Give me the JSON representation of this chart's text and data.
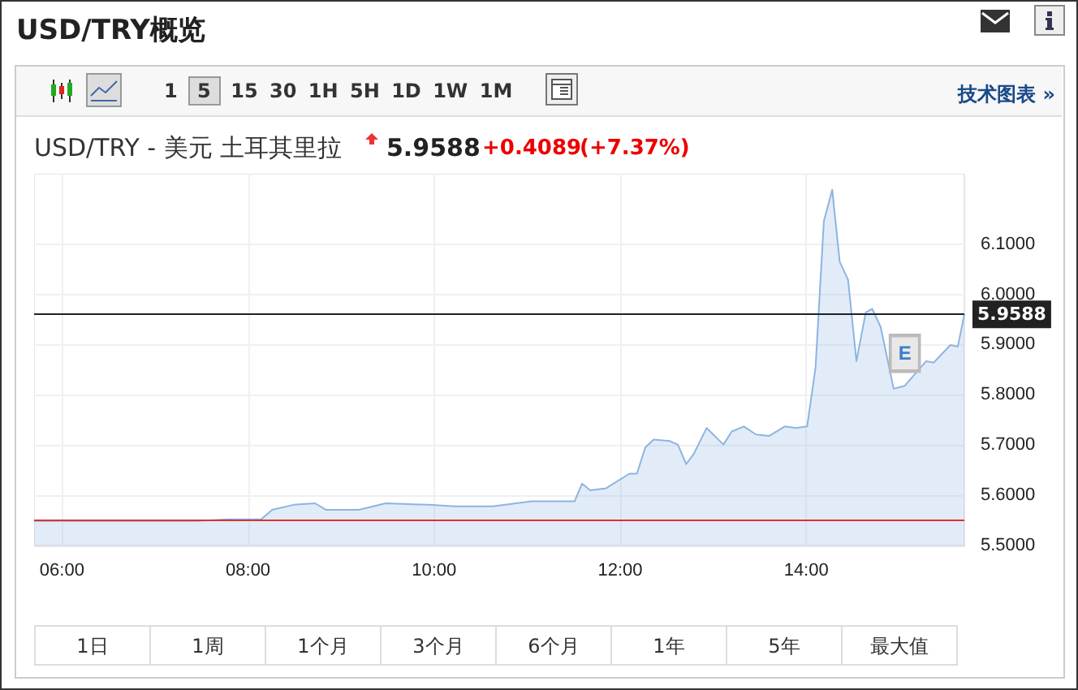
{
  "chart_data": {
    "type": "area",
    "title": "USD/TRY概览",
    "subtitle": "USD/TRY - 美元 土耳其里拉",
    "annotations": [
      "5.9588",
      "+0.4089",
      "(+7.37%)",
      "1 5 15 30 1H 5H 1D 1W 1M",
      "技术图表 »",
      "1日",
      "1周",
      "1个月",
      "3个月",
      "6个月",
      "1年",
      "5年",
      "最大值",
      {
        "text": "E",
        "x": 15.06,
        "y": 5.818
      }
    ],
    "x": [
      5.7,
      7.45,
      7.79,
      8.14,
      8.26,
      8.49,
      8.72,
      8.84,
      9.19,
      9.48,
      9.94,
      10.23,
      10.63,
      11.05,
      11.51,
      11.59,
      11.68,
      11.85,
      12.1,
      12.18,
      12.27,
      12.36,
      12.53,
      12.62,
      12.71,
      12.79,
      12.93,
      13.11,
      13.2,
      13.33,
      13.46,
      13.6,
      13.77,
      13.89,
      14.01,
      14.1,
      14.19,
      14.28,
      14.36,
      14.45,
      14.54,
      14.64,
      14.71,
      14.8,
      14.94,
      15.06,
      15.11,
      15.29,
      15.37,
      15.55,
      15.63,
      15.7
    ],
    "series": [
      {
        "color": "#8db4e2",
        "values": [
          5.549,
          5.549,
          5.552,
          5.552,
          5.571,
          5.581,
          5.584,
          5.571,
          5.571,
          5.584,
          5.581,
          5.578,
          5.578,
          5.588,
          5.588,
          5.623,
          5.61,
          5.614,
          5.643,
          5.643,
          5.695,
          5.711,
          5.708,
          5.701,
          5.662,
          5.682,
          5.734,
          5.701,
          5.727,
          5.737,
          5.721,
          5.718,
          5.737,
          5.734,
          5.737,
          5.854,
          6.146,
          6.208,
          6.065,
          6.029,
          5.867,
          5.964,
          5.971,
          5.935,
          5.812,
          5.818,
          null,
          5.867,
          5.864,
          5.899,
          5.896,
          5.96
        ]
      }
    ],
    "xlim": [
      5.7,
      15.7
    ],
    "xticks": [
      {
        "value": 6,
        "label": "06:00"
      },
      {
        "value": 8,
        "label": "08:00"
      },
      {
        "value": 10,
        "label": "10:00"
      },
      {
        "value": 12,
        "label": "12:00"
      },
      {
        "value": 14,
        "label": "14:00"
      }
    ],
    "ylim": [
      5.5,
      6.24
    ],
    "yticks": [
      {
        "value": 5.5,
        "label": "5.5000"
      },
      {
        "value": 5.6,
        "label": "5.6000"
      },
      {
        "value": 5.7,
        "label": "5.7000"
      },
      {
        "value": 5.8,
        "label": "5.8000"
      },
      {
        "value": 5.9,
        "label": "5.9000"
      },
      {
        "value": 6.0,
        "label": "6.0000"
      },
      {
        "value": 6.1,
        "label": "6.1000"
      }
    ],
    "ref_lines": [
      {
        "axis": "y",
        "value": 5.9588,
        "label": "5.9588",
        "color": "#222222"
      },
      {
        "axis": "y",
        "value": 5.55,
        "color": "#e03030"
      }
    ],
    "grid": true,
    "marker": "none"
  }
}
